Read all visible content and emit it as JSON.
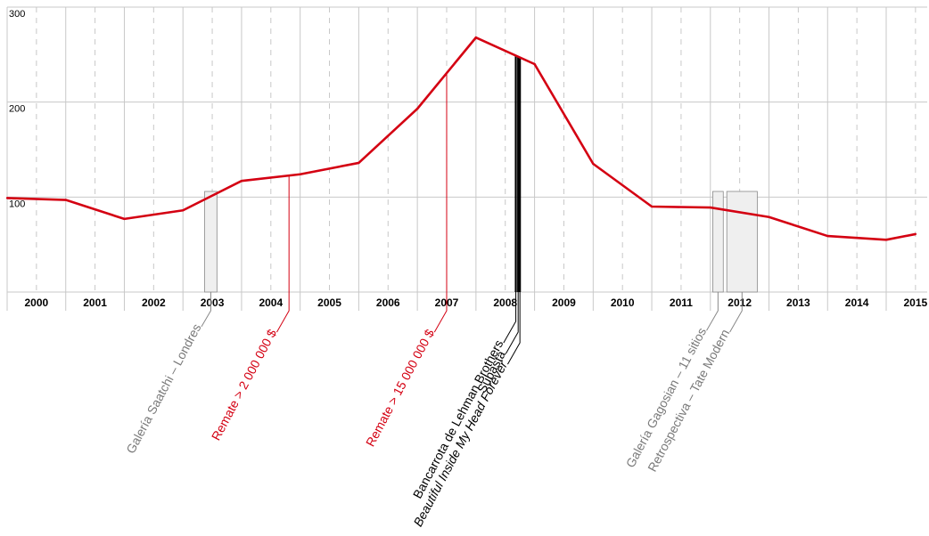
{
  "chart_data": {
    "type": "line",
    "title": "",
    "xlabel": "",
    "ylabel": "",
    "x": [
      1999.5,
      2000.5,
      2001.5,
      2002.5,
      2003.5,
      2004.5,
      2005.5,
      2006.5,
      2007.5,
      2008.5,
      2009.5,
      2010.5,
      2011.5,
      2012.5,
      2013.5,
      2014.5,
      2015
    ],
    "series": [
      {
        "values": [
          99,
          97,
          77,
          86,
          117,
          124,
          136,
          193,
          268,
          240,
          135,
          90,
          89,
          79,
          59,
          55,
          61
        ],
        "color": "#d40012"
      }
    ],
    "ylim": [
      0,
      300
    ],
    "xlim": [
      1999.5,
      2015.2
    ],
    "yticks": [
      100,
      200,
      300
    ],
    "ytick_labels": [
      "100",
      "200",
      "300"
    ],
    "xtick_labels": [
      "2000",
      "2001",
      "2002",
      "2003",
      "2004",
      "2005",
      "2006",
      "2007",
      "2008",
      "2009",
      "2010",
      "2011",
      "2012",
      "2013",
      "2014",
      "2015"
    ],
    "grid": true,
    "legend": "none",
    "annotations": [
      {
        "type": "band",
        "x_start": 2002.87,
        "x_end": 2003.08,
        "color": "#888888",
        "label": "Galería Saatchi – Londres",
        "italic": false
      },
      {
        "type": "vline",
        "x": 2004.31,
        "color": "#d40012",
        "label": "Remate > 2 000 000 $",
        "italic": false
      },
      {
        "type": "vline",
        "x": 2007.0,
        "color": "#d40012",
        "label": "Remate > 15 000 000 $",
        "italic": false
      },
      {
        "type": "vline",
        "x": 2008.18,
        "color": "#000000",
        "label": "Bancarrota de Lehman Brothers",
        "italic": false
      },
      {
        "type": "vline",
        "x": 2008.22,
        "color": "#000000",
        "label": "Subasta",
        "italic": false
      },
      {
        "type": "vline",
        "x": 2008.25,
        "color": "#000000",
        "label": "Beautiful Inside My Head Forever",
        "italic": true
      },
      {
        "type": "band",
        "x_start": 2011.54,
        "x_end": 2011.72,
        "color": "#888888",
        "label": "Galería Gagosian – 11 sitios",
        "italic": false
      },
      {
        "type": "band",
        "x_start": 2011.78,
        "x_end": 2012.3,
        "color": "#888888",
        "label": "Retrospectiva – Tate Modern",
        "italic": false
      }
    ]
  }
}
